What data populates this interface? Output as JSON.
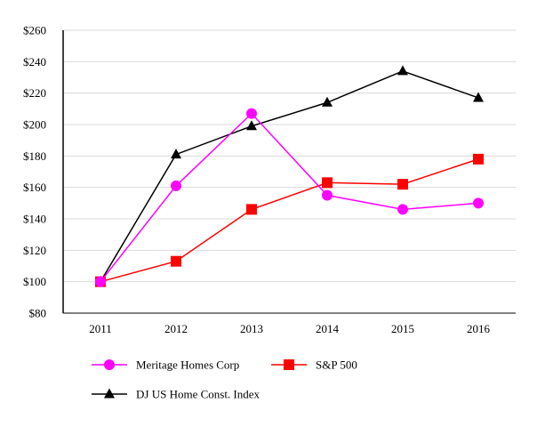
{
  "chart_data": {
    "type": "line",
    "title": "",
    "xlabel": "",
    "ylabel": "",
    "categories": [
      "2011",
      "2012",
      "2013",
      "2014",
      "2015",
      "2016"
    ],
    "ylim": [
      80,
      260
    ],
    "yticks": [
      80,
      100,
      120,
      140,
      160,
      180,
      200,
      220,
      240,
      260
    ],
    "ytick_labels": [
      "$80",
      "$100",
      "$120",
      "$140",
      "$160",
      "$180",
      "$200",
      "$220",
      "$240",
      "$260"
    ],
    "grid": true,
    "legend_position": "bottom",
    "series": [
      {
        "name": "Meritage Homes Corp",
        "color": "#ff00ff",
        "marker": "circle",
        "values": [
          100,
          161,
          207,
          155,
          146,
          150
        ]
      },
      {
        "name": "S&P 500",
        "color": "#ff0000",
        "marker": "square",
        "values": [
          100,
          113,
          146,
          163,
          162,
          178
        ]
      },
      {
        "name": "DJ US Home Const. Index",
        "color": "#000000",
        "marker": "triangle",
        "values": [
          100,
          181,
          199,
          214,
          234,
          217
        ]
      }
    ]
  }
}
